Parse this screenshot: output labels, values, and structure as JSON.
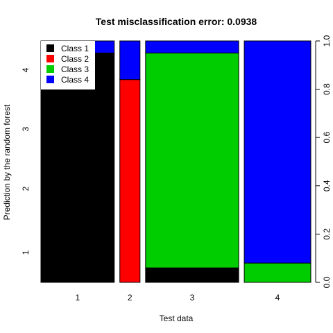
{
  "chart_data": {
    "type": "bar",
    "subtype": "spineplot",
    "title": "Test misclassification error: 0.0938",
    "xlabel": "Test data",
    "ylabel": "Prediction by the random forest",
    "categories": [
      "1",
      "2",
      "3",
      "4"
    ],
    "category_proportions": [
      0.367,
      0.101,
      0.466,
      0.333
    ],
    "left_axis_ticks": [
      "1",
      "2",
      "3",
      "4"
    ],
    "right_axis_ticks": [
      "0.0",
      "0.2",
      "0.4",
      "0.6",
      "0.8",
      "1.0"
    ],
    "ylim": [
      0,
      1
    ],
    "series": [
      {
        "name": "Class 1",
        "color": "#000000",
        "values": [
          0.95,
          0.0,
          0.06,
          0.0
        ]
      },
      {
        "name": "Class 2",
        "color": "#ff0000",
        "values": [
          0.0,
          0.84,
          0.0,
          0.0
        ]
      },
      {
        "name": "Class 3",
        "color": "#00cd00",
        "values": [
          0.0,
          0.0,
          0.89,
          0.08
        ]
      },
      {
        "name": "Class 4",
        "color": "#0000ff",
        "values": [
          0.05,
          0.16,
          0.05,
          0.92
        ]
      }
    ],
    "legend_position": "top-left"
  }
}
